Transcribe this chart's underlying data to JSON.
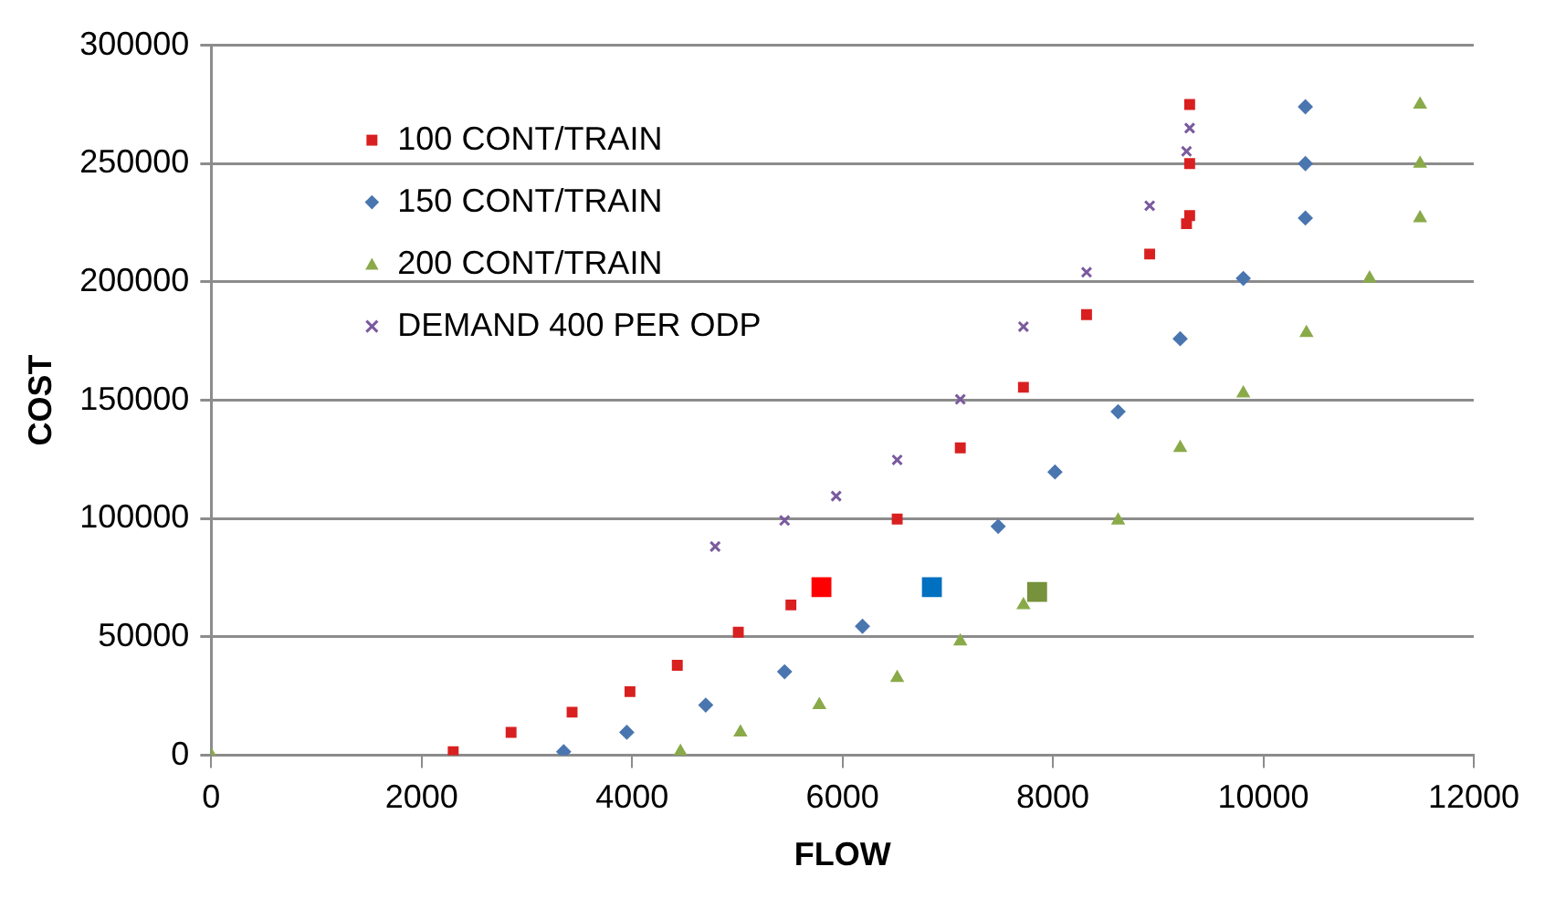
{
  "chart_data": {
    "type": "scatter",
    "xlabel": "FLOW",
    "ylabel": "COST",
    "xlim": [
      0,
      12000
    ],
    "xticks": [
      0,
      2000,
      4000,
      6000,
      8000,
      10000,
      12000
    ],
    "ylim": [
      0,
      300000
    ],
    "yticks": [
      0,
      50000,
      100000,
      150000,
      200000,
      250000,
      300000
    ],
    "grid": "y",
    "legend": "top left",
    "series": [
      {
        "name": "100 CONT/TRAIN",
        "color": "#d92020",
        "marker": "square",
        "x": [
          2300,
          2850,
          3430,
          3980,
          4430,
          5010,
          5510,
          6520,
          7120,
          7720,
          8320,
          8920,
          9270,
          9300,
          9300,
          9300
        ],
        "values": [
          1500,
          9700,
          18200,
          26900,
          38000,
          52000,
          63500,
          99800,
          129900,
          155500,
          186200,
          211800,
          224600,
          228000,
          250000,
          275000
        ]
      },
      {
        "name": "150 CONT/TRAIN",
        "color": "#4a76b0",
        "marker": "diamond",
        "x": [
          3350,
          3950,
          4700,
          5450,
          6190,
          7480,
          8020,
          8620,
          9210,
          9810,
          10400,
          10400,
          10400
        ],
        "values": [
          1500,
          9700,
          21200,
          35300,
          54500,
          96700,
          119700,
          145200,
          176000,
          201500,
          227000,
          250000,
          274000
        ]
      },
      {
        "name": "200 CONT/TRAIN",
        "color": "#8aaa4a",
        "marker": "triangle",
        "x": [
          0,
          4460,
          5030,
          5780,
          6520,
          7120,
          7720,
          8620,
          9210,
          9810,
          10410,
          11010,
          11490,
          11490,
          11490
        ],
        "values": [
          0,
          1500,
          9700,
          21200,
          32700,
          48100,
          63500,
          99200,
          129900,
          152900,
          178500,
          201500,
          227000,
          250000,
          275000
        ]
      },
      {
        "name": "DEMAND 400 PER ODP",
        "color": "#7a5a9e",
        "marker": "cross",
        "x": [
          4790,
          5450,
          5940,
          6520,
          7120,
          7720,
          8320,
          8920,
          9270,
          9300
        ],
        "values": [
          88200,
          99200,
          109500,
          124800,
          150400,
          181100,
          204100,
          232200,
          255200,
          265000
        ]
      },
      {
        "colors": [
          "#ff0000",
          "#0070c0",
          "#76923c"
        ],
        "marker": "square",
        "x": [
          5800,
          6850,
          7850
        ],
        "values": [
          71000,
          71000,
          69000
        ]
      }
    ]
  }
}
